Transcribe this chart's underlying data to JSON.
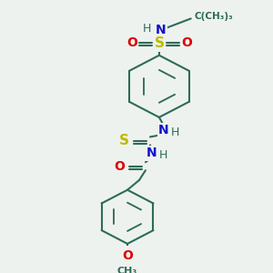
{
  "background_color": "#eef2ee",
  "bond_color": "#2d6b5a",
  "bond_width": 1.5,
  "figsize": [
    3.0,
    3.0
  ],
  "dpi": 100,
  "S_color": "#bbbb00",
  "N_color": "#1111cc",
  "O_color": "#dd0000",
  "C_color": "#2d6b5a",
  "tBu_label": "C(CH₃)₃",
  "methoxy_label": "O",
  "methyl_label": "CH₃"
}
